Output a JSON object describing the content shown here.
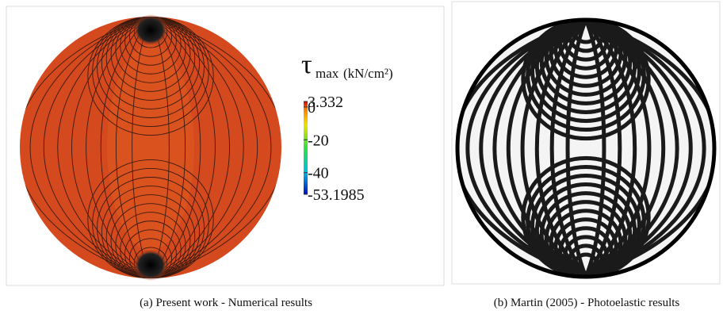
{
  "panels": [
    {
      "legend": {
        "symbol": "τ",
        "subscript": "max",
        "unit": "(kN/cm²)",
        "range": [
          -53.1985,
          3.332
        ],
        "ticks": [
          3.332,
          0,
          -20,
          -40,
          -53.1985
        ]
      },
      "caption": "(a)  Present work - Numerical results"
    },
    {
      "caption": "(b)  Martin (2005) - Photoelastic results"
    }
  ]
}
